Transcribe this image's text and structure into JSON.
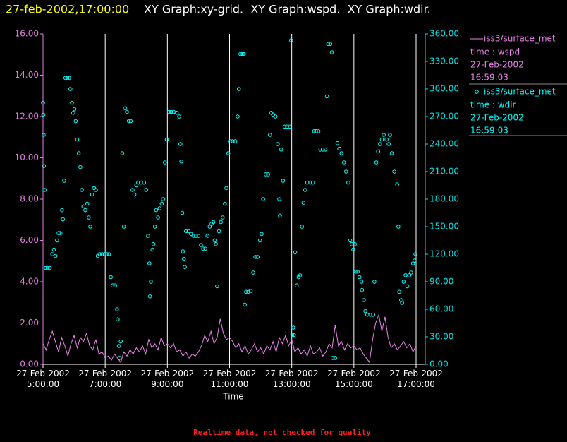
{
  "header": {
    "timestamp": "27-feb-2002,17:00:00",
    "title": "XY Graph:xy-grid.  XY Graph:wspd.  XY Graph:wdir."
  },
  "footer": "Realtime data, not checked for quality",
  "chart_data": {
    "type": "xy",
    "x_label": "Time",
    "xlim": [
      5,
      17
    ],
    "xticks": [
      {
        "value": 5,
        "label": "27-Feb-2002 5:00:00"
      },
      {
        "value": 7,
        "label": "27-Feb-2002 7:00:00"
      },
      {
        "value": 9,
        "label": "27-Feb-2002 9:00:00"
      },
      {
        "value": 11,
        "label": "27-Feb-2002 11:00:00"
      },
      {
        "value": 13,
        "label": "27-Feb-2002 13:00:00"
      },
      {
        "value": 15,
        "label": "27-Feb-2002 15:00:00"
      },
      {
        "value": 17,
        "label": "27-Feb-2002 17:00:00"
      }
    ],
    "ylim": [
      0,
      16
    ],
    "yticks": [
      {
        "value": 0,
        "label": "0.00"
      },
      {
        "value": 2,
        "label": "2.00"
      },
      {
        "value": 4,
        "label": "4.00"
      },
      {
        "value": 6,
        "label": "6.00"
      },
      {
        "value": 8,
        "label": "8.00"
      },
      {
        "value": 10,
        "label": "10.00"
      },
      {
        "value": 12,
        "label": "12.00"
      },
      {
        "value": 14,
        "label": "14.00"
      },
      {
        "value": 16,
        "label": "16.00"
      }
    ],
    "y2lim": [
      0,
      360
    ],
    "y2ticks": [
      {
        "value": 0,
        "label": "0.00"
      },
      {
        "value": 30,
        "label": "30.00"
      },
      {
        "value": 60,
        "label": "60.00"
      },
      {
        "value": 90,
        "label": "90.00"
      },
      {
        "value": 120,
        "label": "120.00"
      },
      {
        "value": 150,
        "label": "150.00"
      },
      {
        "value": 180,
        "label": "180.00"
      },
      {
        "value": 210,
        "label": "210.00"
      },
      {
        "value": 240,
        "label": "240.00"
      },
      {
        "value": 270,
        "label": "270.00"
      },
      {
        "value": 300,
        "label": "300.00"
      },
      {
        "value": 330,
        "label": "330.00"
      },
      {
        "value": 360,
        "label": "360.00"
      }
    ],
    "y_color": "#e080e0",
    "y2_color": "#00e0e0",
    "grid": true,
    "series": [
      {
        "name": "iss3/surface_met",
        "legend_lines": [
          "time : wspd",
          "27-Feb-2002",
          "16:59:03"
        ],
        "type": "line",
        "color": "#ee82ee",
        "x": [
          5.0,
          5.1,
          5.2,
          5.3,
          5.4,
          5.5,
          5.6,
          5.7,
          5.8,
          5.9,
          6.0,
          6.1,
          6.2,
          6.3,
          6.4,
          6.5,
          6.6,
          6.7,
          6.8,
          6.9,
          7.0,
          7.1,
          7.2,
          7.3,
          7.4,
          7.5,
          7.6,
          7.7,
          7.8,
          7.9,
          8.0,
          8.1,
          8.2,
          8.3,
          8.4,
          8.5,
          8.6,
          8.7,
          8.8,
          8.9,
          9.0,
          9.1,
          9.2,
          9.3,
          9.4,
          9.5,
          9.6,
          9.7,
          9.8,
          9.9,
          10.0,
          10.1,
          10.2,
          10.3,
          10.4,
          10.5,
          10.6,
          10.7,
          10.8,
          10.9,
          11.0,
          11.1,
          11.2,
          11.3,
          11.4,
          11.5,
          11.6,
          11.7,
          11.8,
          11.9,
          12.0,
          12.1,
          12.2,
          12.3,
          12.4,
          12.5,
          12.6,
          12.7,
          12.8,
          12.9,
          13.0,
          13.1,
          13.2,
          13.3,
          13.4,
          13.5,
          13.6,
          13.7,
          13.8,
          13.9,
          14.0,
          14.1,
          14.2,
          14.3,
          14.4,
          14.5,
          14.6,
          14.7,
          14.8,
          14.9,
          15.0,
          15.1,
          15.2,
          15.3,
          15.4,
          15.5,
          15.6,
          15.7,
          15.8,
          15.9,
          16.0,
          16.1,
          16.2,
          16.3,
          16.4,
          16.5,
          16.6,
          16.7,
          16.8,
          16.9,
          17.0
        ],
        "values": [
          1.0,
          0.7,
          1.2,
          1.6,
          1.1,
          0.6,
          1.3,
          0.9,
          0.4,
          1.0,
          1.4,
          0.8,
          1.3,
          1.1,
          1.5,
          0.9,
          0.7,
          1.2,
          0.5,
          0.6,
          0.3,
          0.4,
          0.2,
          0.5,
          0.3,
          0.1,
          0.6,
          0.4,
          0.7,
          0.5,
          0.8,
          0.6,
          0.9,
          0.5,
          1.2,
          0.8,
          1.0,
          0.7,
          1.3,
          0.9,
          1.0,
          0.8,
          1.0,
          0.6,
          0.7,
          0.4,
          0.6,
          0.3,
          0.5,
          0.4,
          0.6,
          0.9,
          1.4,
          1.1,
          1.6,
          1.0,
          1.3,
          2.2,
          1.5,
          1.2,
          1.3,
          1.1,
          0.8,
          1.0,
          0.6,
          0.9,
          0.5,
          0.7,
          1.0,
          0.6,
          0.8,
          0.5,
          0.9,
          0.7,
          1.1,
          0.6,
          1.3,
          1.0,
          1.4,
          0.9,
          1.2,
          0.6,
          0.8,
          0.5,
          0.7,
          0.4,
          0.9,
          0.5,
          0.6,
          0.8,
          0.4,
          0.6,
          1.0,
          0.8,
          1.9,
          0.9,
          1.1,
          0.7,
          1.0,
          0.8,
          0.9,
          0.7,
          0.8,
          0.5,
          0.3,
          0.1,
          1.2,
          2.0,
          2.4,
          1.6,
          2.3,
          1.3,
          0.8,
          1.0,
          0.7,
          0.9,
          1.1,
          0.8,
          1.0,
          0.6,
          0.9
        ]
      },
      {
        "name": "iss3/surface_met",
        "legend_lines": [
          "time : wdir",
          "27-Feb-2002",
          "16:59:03"
        ],
        "type": "scatter",
        "color": "#00ffff",
        "axis": "y2",
        "x": [
          5.0,
          5.01,
          5.02,
          5.03,
          5.05,
          5.09,
          5.15,
          5.22,
          5.3,
          5.35,
          5.4,
          5.45,
          5.5,
          5.56,
          5.61,
          5.64,
          5.68,
          5.72,
          5.78,
          5.84,
          5.88,
          5.93,
          5.97,
          6.01,
          6.05,
          6.1,
          6.15,
          6.2,
          6.25,
          6.3,
          6.36,
          6.42,
          6.47,
          6.52,
          6.58,
          6.64,
          6.7,
          6.76,
          6.82,
          6.9,
          6.98,
          7.05,
          7.12,
          7.18,
          7.24,
          7.32,
          7.38,
          7.4,
          7.44,
          7.46,
          7.5,
          7.55,
          7.6,
          7.64,
          7.7,
          7.76,
          7.82,
          7.88,
          7.94,
          8.0,
          8.06,
          8.15,
          8.25,
          8.32,
          8.38,
          8.42,
          8.44,
          8.47,
          8.52,
          8.55,
          8.6,
          8.64,
          8.7,
          8.75,
          8.82,
          8.86,
          8.92,
          8.98,
          9.05,
          9.12,
          9.2,
          9.3,
          9.38,
          9.42,
          9.45,
          9.48,
          9.5,
          9.53,
          9.56,
          9.6,
          9.68,
          9.76,
          9.84,
          9.92,
          10.0,
          10.08,
          10.15,
          10.22,
          10.29,
          10.36,
          10.42,
          10.48,
          10.52,
          10.56,
          10.6,
          10.66,
          10.72,
          10.78,
          10.85,
          10.9,
          10.96,
          11.03,
          11.1,
          11.18,
          11.26,
          11.3,
          11.35,
          11.42,
          11.46,
          11.49,
          11.53,
          11.6,
          11.68,
          11.76,
          11.83,
          11.9,
          11.98,
          12.03,
          12.08,
          12.16,
          12.24,
          12.3,
          12.34,
          12.4,
          12.48,
          12.55,
          12.6,
          12.62,
          12.66,
          12.72,
          12.77,
          12.85,
          12.93,
          12.98,
          13.02,
          13.05,
          13.07,
          13.11,
          13.16,
          13.22,
          13.27,
          13.33,
          13.38,
          13.43,
          13.5,
          13.6,
          13.68,
          13.72,
          13.78,
          13.86,
          13.92,
          14.0,
          14.08,
          14.13,
          14.17,
          14.24,
          14.29,
          14.32,
          14.4,
          14.47,
          14.53,
          14.6,
          14.68,
          14.75,
          14.82,
          14.88,
          14.93,
          14.98,
          15.03,
          15.06,
          15.12,
          15.18,
          15.24,
          15.26,
          15.32,
          15.37,
          15.43,
          15.53,
          15.62,
          15.66,
          15.72,
          15.78,
          15.84,
          15.9,
          15.96,
          16.05,
          16.12,
          16.16,
          16.22,
          16.3,
          16.39,
          16.43,
          16.46,
          16.52,
          16.55,
          16.6,
          16.66,
          16.72,
          16.78,
          16.84,
          16.9,
          16.95,
          16.98
        ],
        "values": [
          285,
          272,
          250,
          216,
          190,
          105,
          105,
          105,
          120,
          125,
          118,
          135,
          143,
          143,
          168,
          158,
          200,
          312,
          312,
          312,
          300,
          285,
          274,
          278,
          265,
          245,
          230,
          215,
          190,
          172,
          168,
          175,
          160,
          150,
          185,
          192,
          190,
          118,
          120,
          120,
          120,
          120,
          120,
          95,
          86,
          86,
          60,
          49,
          20,
          7,
          25,
          230,
          150,
          279,
          275,
          265,
          265,
          190,
          185,
          195,
          198,
          198,
          198,
          190,
          140,
          110,
          74,
          90,
          125,
          131,
          150,
          168,
          160,
          170,
          175,
          180,
          220,
          245,
          275,
          275,
          275,
          274,
          270,
          240,
          221,
          165,
          123,
          115,
          106,
          145,
          145,
          142,
          140,
          140,
          140,
          130,
          126,
          126,
          140,
          150,
          153,
          155,
          135,
          131,
          85,
          145,
          155,
          160,
          175,
          192,
          230,
          243,
          243,
          243,
          270,
          300,
          338,
          338,
          338,
          65,
          79,
          79,
          80,
          100,
          117,
          117,
          135,
          142,
          180,
          207,
          207,
          250,
          274,
          272,
          270,
          240,
          180,
          162,
          234,
          200,
          259,
          259,
          259,
          353,
          32,
          40,
          32,
          122,
          86,
          95,
          97,
          150,
          176,
          190,
          198,
          198,
          198,
          254,
          254,
          254,
          234,
          234,
          234,
          292,
          349,
          349,
          340,
          7,
          7,
          241,
          235,
          230,
          220,
          210,
          198,
          135,
          131,
          125,
          131,
          101,
          101,
          95,
          90,
          81,
          70,
          58,
          54,
          54,
          54,
          90,
          220,
          232,
          240,
          245,
          250,
          245,
          240,
          250,
          230,
          210,
          196,
          150,
          79,
          70,
          67,
          90,
          97,
          85,
          97,
          100,
          110,
          113,
          120
        ]
      }
    ]
  }
}
